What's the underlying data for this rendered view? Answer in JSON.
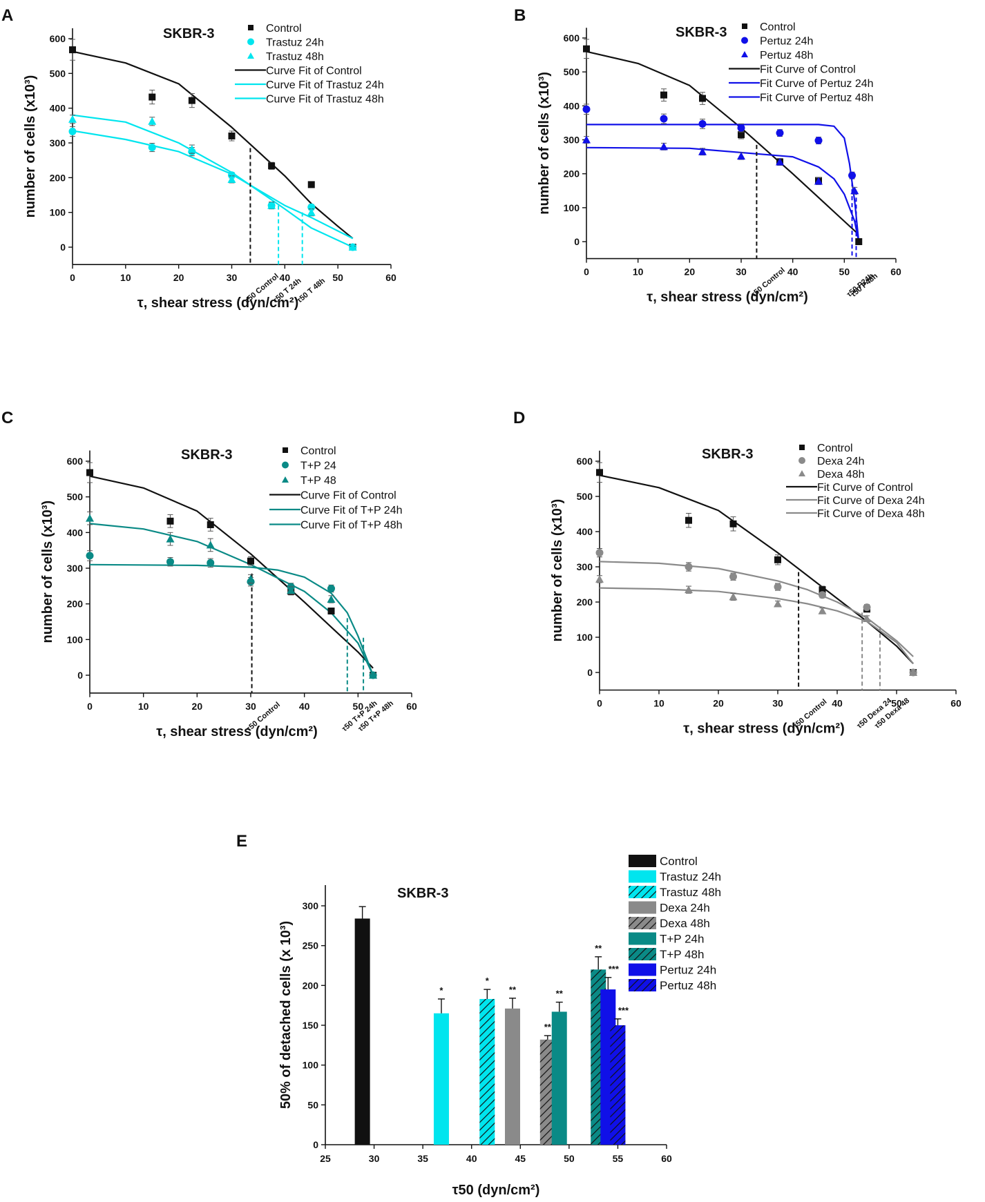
{
  "figure": {
    "panels": [
      "A",
      "B",
      "C",
      "D",
      "E"
    ]
  },
  "colors": {
    "black": "#111111",
    "cyan": "#00e5ee",
    "blue": "#1010e8",
    "teal": "#0a8a86",
    "grey": "#8a8a8a"
  },
  "chart_data": [
    {
      "panel": "A",
      "type": "scatter",
      "title": "SKBR-3",
      "xlabel": "τ, shear stress (dyn/cm²)",
      "ylabel": "number of cells (x10³)",
      "xlim": [
        0,
        60
      ],
      "ylim": [
        -50,
        630
      ],
      "xticks": [
        0,
        10,
        20,
        30,
        40,
        50,
        60
      ],
      "yticks": [
        0,
        100,
        200,
        300,
        400,
        500,
        600
      ],
      "legend_pos": "top-right",
      "series": [
        {
          "name": "Control",
          "marker": "square",
          "color": "#111111",
          "x": [
            0,
            15,
            22.5,
            30,
            37.5,
            45,
            52.8
          ],
          "y": [
            568,
            432,
            422,
            320,
            234,
            180,
            0
          ],
          "err": [
            30,
            20,
            20,
            14,
            10,
            8,
            4
          ]
        },
        {
          "name": "Trastuz 24h",
          "marker": "circle",
          "color": "#00e5ee",
          "x": [
            0,
            15,
            22.5,
            30,
            37.5,
            45,
            52.8
          ],
          "y": [
            333,
            287,
            275,
            207,
            120,
            115,
            0
          ],
          "err": [
            14,
            12,
            12,
            8,
            8,
            8,
            3
          ]
        },
        {
          "name": "Trastuz 48h",
          "marker": "triangle",
          "color": "#00e5ee",
          "x": [
            0,
            15,
            22.5,
            30,
            37.5,
            45,
            52.8
          ],
          "y": [
            368,
            362,
            282,
            195,
            120,
            100,
            0
          ],
          "err": [
            12,
            12,
            12,
            10,
            10,
            10,
            3
          ]
        }
      ],
      "fits": [
        {
          "name": "Curve Fit of Control",
          "color": "#111111",
          "x": [
            0,
            10,
            20,
            30,
            40,
            45,
            50,
            52.8
          ],
          "y": [
            563,
            530,
            470,
            345,
            205,
            125,
            60,
            25
          ]
        },
        {
          "name": "Curve Fit of Trastuz 24h",
          "color": "#00e5ee",
          "x": [
            0,
            10,
            20,
            30,
            40,
            45,
            52.8
          ],
          "y": [
            335,
            310,
            275,
            210,
            120,
            85,
            25
          ]
        },
        {
          "name": "Curve Fit of Trastuz 48h",
          "color": "#00e5ee",
          "x": [
            0,
            10,
            20,
            30,
            40,
            45,
            52.8
          ],
          "y": [
            380,
            360,
            300,
            215,
            110,
            55,
            0
          ]
        }
      ],
      "t50": [
        {
          "label": "τ50 Control",
          "x": 33.5,
          "y": 285,
          "color": "#111111"
        },
        {
          "label": "τ50 T 24h",
          "x": 38.8,
          "y": 120,
          "color": "#00e5ee"
        },
        {
          "label": "τ50 T 48h",
          "x": 43.3,
          "y": 100,
          "color": "#00e5ee"
        }
      ]
    },
    {
      "panel": "B",
      "type": "scatter",
      "title": "SKBR-3",
      "xlabel": "τ, shear stress (dyn/cm²)",
      "ylabel": "number of cells (x10³)",
      "xlim": [
        0,
        60
      ],
      "ylim": [
        -50,
        630
      ],
      "xticks": [
        0,
        10,
        20,
        30,
        40,
        50,
        60
      ],
      "yticks": [
        0,
        100,
        200,
        300,
        400,
        500,
        600
      ],
      "legend_pos": "top-right",
      "series": [
        {
          "name": "Control",
          "marker": "square",
          "color": "#111111",
          "x": [
            0,
            15,
            22.5,
            30,
            37.5,
            45,
            52.8
          ],
          "y": [
            568,
            432,
            422,
            315,
            235,
            180,
            0
          ],
          "err": [
            28,
            18,
            18,
            12,
            10,
            8,
            4
          ]
        },
        {
          "name": "Pertuz 24h",
          "marker": "circle",
          "color": "#1010e8",
          "x": [
            0,
            15,
            22.5,
            30,
            37.5,
            45,
            51.5
          ],
          "y": [
            390,
            362,
            347,
            335,
            320,
            298,
            195
          ],
          "err": [
            15,
            14,
            14,
            12,
            10,
            10,
            10
          ]
        },
        {
          "name": "Pertuz 48h",
          "marker": "triangle",
          "color": "#1010e8",
          "x": [
            0,
            15,
            22.5,
            30,
            37.5,
            45,
            52
          ],
          "y": [
            300,
            280,
            265,
            252,
            235,
            178,
            150
          ],
          "err": [
            10,
            10,
            10,
            10,
            10,
            10,
            10
          ]
        }
      ],
      "fits": [
        {
          "name": "Fit Curve of Control",
          "color": "#111111",
          "x": [
            0,
            10,
            20,
            30,
            40,
            45,
            50,
            52.5
          ],
          "y": [
            560,
            525,
            460,
            335,
            200,
            130,
            60,
            25
          ]
        },
        {
          "name": "Fit Curve of Pertuz 24h",
          "color": "#1010e8",
          "x": [
            0,
            30,
            45,
            48,
            50,
            51,
            52,
            52.8
          ],
          "y": [
            345,
            345,
            345,
            340,
            305,
            230,
            120,
            0
          ]
        },
        {
          "name": "Fit Curve of Pertuz 48h",
          "color": "#1010e8",
          "x": [
            0,
            20,
            40,
            45,
            48,
            50,
            52,
            52.8
          ],
          "y": [
            277,
            275,
            250,
            220,
            185,
            140,
            60,
            0
          ]
        }
      ],
      "t50": [
        {
          "label": "τ50 Control",
          "x": 33,
          "y": 285,
          "color": "#111111"
        },
        {
          "label": "τ50 P24h",
          "x": 51.5,
          "y": 195,
          "color": "#1010e8"
        },
        {
          "label": "τ50 P48h",
          "x": 52.3,
          "y": 150,
          "color": "#1010e8"
        }
      ]
    },
    {
      "panel": "C",
      "type": "scatter",
      "title": "SKBR-3",
      "xlabel": "τ, shear stress (dyn/cm²)",
      "ylabel": "number of cells (x10³)",
      "xlim": [
        0,
        60
      ],
      "ylim": [
        -50,
        630
      ],
      "xticks": [
        0,
        10,
        20,
        30,
        40,
        50,
        60
      ],
      "yticks": [
        0,
        100,
        200,
        300,
        400,
        500,
        600
      ],
      "legend_pos": "top-right",
      "series": [
        {
          "name": "Control",
          "marker": "square",
          "color": "#111111",
          "x": [
            0,
            15,
            22.5,
            30,
            37.5,
            45,
            52.8
          ],
          "y": [
            568,
            432,
            422,
            320,
            235,
            180,
            0
          ],
          "err": [
            28,
            18,
            18,
            12,
            10,
            8,
            4
          ]
        },
        {
          "name": "T+P 24",
          "marker": "circle",
          "color": "#0a8a86",
          "x": [
            0,
            15,
            22.5,
            30,
            37.5,
            45,
            52.8
          ],
          "y": [
            335,
            318,
            315,
            262,
            248,
            243,
            0
          ],
          "err": [
            14,
            12,
            12,
            12,
            10,
            10,
            4
          ]
        },
        {
          "name": "T+P 48",
          "marker": "triangle",
          "color": "#0a8a86",
          "x": [
            0,
            15,
            22.5,
            30,
            37.5,
            45,
            52.8
          ],
          "y": [
            440,
            382,
            365,
            270,
            238,
            213,
            0
          ],
          "err": [
            18,
            18,
            18,
            12,
            10,
            10,
            4
          ]
        }
      ],
      "fits": [
        {
          "name": "Curve Fit of Control",
          "color": "#111111",
          "x": [
            0,
            10,
            20,
            30,
            40,
            45,
            50,
            52.8
          ],
          "y": [
            558,
            525,
            460,
            340,
            205,
            135,
            65,
            20
          ]
        },
        {
          "name": "Curve Fit of T+P 24h",
          "color": "#0a8a86",
          "x": [
            0,
            20,
            30,
            35,
            40,
            45,
            48,
            50,
            52.8
          ],
          "y": [
            310,
            308,
            303,
            295,
            275,
            230,
            175,
            110,
            0
          ]
        },
        {
          "name": "Curve Fit of T+P 48h",
          "color": "#0a8a86",
          "x": [
            0,
            10,
            20,
            30,
            40,
            45,
            50,
            52.8
          ],
          "y": [
            425,
            410,
            375,
            310,
            235,
            175,
            90,
            0
          ]
        }
      ],
      "t50": [
        {
          "label": "τ50 Control",
          "x": 30.2,
          "y": 285,
          "color": "#111111"
        },
        {
          "label": "τ50 T+P 24h",
          "x": 48,
          "y": 160,
          "color": "#0a8a86"
        },
        {
          "label": "τ50 T+P 48h",
          "x": 51,
          "y": 105,
          "color": "#0a8a86"
        }
      ]
    },
    {
      "panel": "D",
      "type": "scatter",
      "title": "SKBR-3",
      "xlabel": "τ, shear stress (dyn/cm²)",
      "ylabel": "number of cells (x10³)",
      "xlim": [
        0,
        60
      ],
      "ylim": [
        -50,
        630
      ],
      "xticks": [
        0,
        10,
        20,
        30,
        40,
        50,
        60
      ],
      "yticks": [
        0,
        100,
        200,
        300,
        400,
        500,
        600
      ],
      "legend_pos": "top-right",
      "series": [
        {
          "name": "Control",
          "marker": "square",
          "color": "#111111",
          "x": [
            0,
            15,
            22.5,
            30,
            37.5,
            45,
            52.8
          ],
          "y": [
            568,
            432,
            422,
            320,
            235,
            180,
            0
          ],
          "err": [
            28,
            20,
            20,
            14,
            10,
            8,
            4
          ]
        },
        {
          "name": "Dexa 24h",
          "marker": "circle",
          "color": "#8a8a8a",
          "x": [
            0,
            15,
            22.5,
            30,
            37.5,
            45,
            52.8
          ],
          "y": [
            340,
            300,
            272,
            243,
            220,
            185,
            0
          ],
          "err": [
            12,
            12,
            10,
            10,
            8,
            8,
            4
          ]
        },
        {
          "name": "Dexa 48h",
          "marker": "triangle",
          "color": "#8a8a8a",
          "x": [
            0,
            15,
            22.5,
            30,
            37.5,
            45,
            52.8
          ],
          "y": [
            265,
            235,
            215,
            195,
            175,
            153,
            0
          ],
          "err": [
            10,
            10,
            10,
            8,
            8,
            8,
            4
          ]
        }
      ],
      "fits": [
        {
          "name": "Fit Curve of Control",
          "color": "#111111",
          "x": [
            0,
            10,
            20,
            30,
            40,
            45,
            50,
            52.8
          ],
          "y": [
            560,
            525,
            460,
            340,
            210,
            145,
            75,
            25
          ]
        },
        {
          "name": "Fit Curve of Dexa 24h",
          "color": "#8a8a8a",
          "x": [
            0,
            10,
            20,
            30,
            35,
            40,
            45,
            50,
            52.8
          ],
          "y": [
            315,
            310,
            295,
            260,
            235,
            200,
            155,
            90,
            45
          ]
        },
        {
          "name": "Fit Curve of Dexa 48h",
          "color": "#8a8a8a",
          "x": [
            0,
            10,
            20,
            30,
            35,
            40,
            45,
            50,
            52.8
          ],
          "y": [
            240,
            237,
            230,
            210,
            195,
            175,
            145,
            85,
            25
          ]
        }
      ],
      "t50": [
        {
          "label": "τ50 Control",
          "x": 33.5,
          "y": 285,
          "color": "#111111"
        },
        {
          "label": "τ50 Dexa 24",
          "x": 44.2,
          "y": 170,
          "color": "#8a8a8a"
        },
        {
          "label": "τ50 Dexa 48",
          "x": 47.2,
          "y": 130,
          "color": "#8a8a8a"
        }
      ]
    },
    {
      "panel": "E",
      "type": "bar",
      "title": "SKBR-3",
      "xlabel": "τ50 (dyn/cm²)",
      "ylabel": "50% of detached cells (x 10³)",
      "xlim": [
        25,
        60
      ],
      "ylim": [
        0,
        320
      ],
      "xticks": [
        25,
        30,
        35,
        40,
        45,
        50,
        55,
        60
      ],
      "yticks": [
        0,
        50,
        100,
        150,
        200,
        250,
        300
      ],
      "legend_pos": "top-right",
      "bars": [
        {
          "name": "Control",
          "x": 28.8,
          "value": 284,
          "err": 15,
          "color": "#111111",
          "hatch": false,
          "sig": ""
        },
        {
          "name": "Trastuz 24h",
          "x": 36.9,
          "value": 165,
          "err": 18,
          "color": "#00e5ee",
          "hatch": false,
          "sig": "*"
        },
        {
          "name": "Trastuz 48h",
          "x": 41.6,
          "value": 183,
          "err": 12,
          "color": "#00e5ee",
          "hatch": true,
          "sig": "*"
        },
        {
          "name": "Dexa 24h",
          "x": 44.2,
          "value": 171,
          "err": 13,
          "color": "#8a8a8a",
          "hatch": false,
          "sig": "**"
        },
        {
          "name": "Dexa 48h",
          "x": 47.8,
          "value": 132,
          "err": 5,
          "color": "#8a8a8a",
          "hatch": true,
          "sig": "**"
        },
        {
          "name": "T+P 24h",
          "x": 49.0,
          "value": 167,
          "err": 12,
          "color": "#0a8a86",
          "hatch": false,
          "sig": "**"
        },
        {
          "name": "T+P 48h",
          "x": 53.0,
          "value": 220,
          "err": 16,
          "color": "#0a8a86",
          "hatch": true,
          "sig": "**"
        },
        {
          "name": "Pertuz 24h",
          "x": 54.0,
          "value": 195,
          "err": 15,
          "color": "#1010e8",
          "hatch": false,
          "sig": "***"
        },
        {
          "name": "Pertuz 48h",
          "x": 55.0,
          "value": 150,
          "err": 8,
          "color": "#1010e8",
          "hatch": true,
          "sig": "***"
        }
      ]
    }
  ]
}
